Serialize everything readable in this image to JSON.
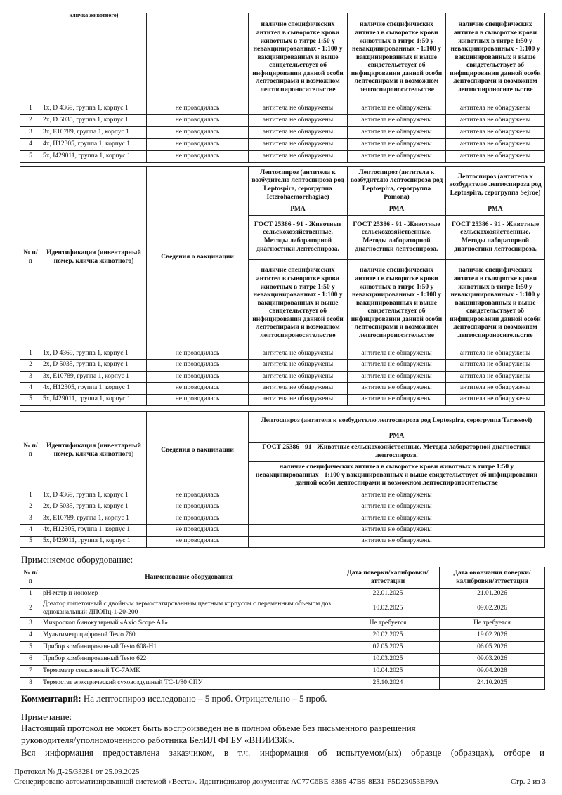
{
  "animals": [
    {
      "n": "1",
      "id": "1х, D 4369, группа 1, корпус 1",
      "vacc": "не проводилась"
    },
    {
      "n": "2",
      "id": "2х, D 5035, группа 1, корпус 1",
      "vacc": "не проводилась"
    },
    {
      "n": "3",
      "id": "3х, E10789, группа 1, корпус 1",
      "vacc": "не проводилась"
    },
    {
      "n": "4",
      "id": "4х, H12305, группа 1, корпус 1",
      "vacc": "не проводилась"
    },
    {
      "n": "5",
      "id": "5х, I429011, группа 1, корпус 1",
      "vacc": "не проводилась"
    }
  ],
  "headers": {
    "num": "№ п/п",
    "ident": "Идентификация (инвентарный номер, кличка животного)",
    "ident_cut": "кличка животного)",
    "vacc": "Сведения о вакцинации",
    "method": "РМА",
    "gost": "ГОСТ 25386 - 91 - Животные сельскохозяйственные. Методы лабораторной диагностики лептоспироза.",
    "criteria": "наличие специфических антител в сыворотке крови животных в титре 1:50 у невакцинированных - 1:100 у вакцинированных и выше свидетельствует об инфицировании данной особи лептоспирами и возможном лептоспироносительстве"
  },
  "result": "антитела не обнаружены",
  "table1": {
    "cols": 3
  },
  "table2": {
    "titles": [
      "Лептоспироз (антитела к возбудителю лептоспироза род Leptospira, серогруппа Icterohaemorrhagiae)",
      "Лептоспироз (антитела к возбудителю лептоспироза род Leptospira, серогруппа Pomona)",
      "Лептоспироз (антитела к возбудителю лептоспироза род Leptospira, серогруппа Sejroe)"
    ]
  },
  "table3": {
    "titles": [
      "Лептоспироз (антитела к возбудителю лептоспироза род Leptospira, серогруппа Tarassovi)"
    ]
  },
  "equipment": {
    "title": "Применяемое оборудование:",
    "headers": [
      "№ п/п",
      "Наименование оборудования",
      "Дата поверки/калибровки/аттестации",
      "Дата окончания поверки/калибровки/аттестации"
    ],
    "rows": [
      [
        "1",
        "pH-метр и иономер",
        "22.01.2025",
        "21.01.2026"
      ],
      [
        "2",
        "Дозатор пипеточный с двойным термостатированным цветным корпусом с переменным объемом доз одноканальный ДПОПц-1-20-200",
        "10.02.2025",
        "09.02.2026"
      ],
      [
        "3",
        "Микроскоп бинокулярный «Axio Scope.A1»",
        "Не требуется",
        "Не требуется"
      ],
      [
        "4",
        "Мультиметр цифровой Testo 760",
        "20.02.2025",
        "19.02.2026"
      ],
      [
        "5",
        "Прибор комбинированный Testo 608-H1",
        "07.05.2025",
        "06.05.2026"
      ],
      [
        "6",
        "Прибор комбинированный Testo 622",
        "10.03.2025",
        "09.03.2026"
      ],
      [
        "7",
        "Термометр стеклянный ТС-7АМК",
        "10.04.2025",
        "09.04.2028"
      ],
      [
        "8",
        "Термостат электрический суховоздушный ТС-1/80 СПУ",
        "25.10.2024",
        "24.10.2025"
      ]
    ]
  },
  "comment": {
    "label": "Комментарий:",
    "text": " На лептоспироз исследовано – 5 проб. Отрицательно – 5 проб."
  },
  "note": {
    "label": "Примечание:",
    "line1": "Настоящий протокол не может быть воспроизведен не в полном объеме без письменного разрешения",
    "line2": "руководителя/уполномоченного работника БелИЛ ФГБУ «ВНИИЗЖ».",
    "line3": "Вся информация предоставлена заказчиком, в т.ч. информация об испытуемом(ых) образце (образцах), отборе и"
  },
  "footer": {
    "protocol": "Протокол № Д-25/33281 от 25.09.2025",
    "generated": "Сгенерировано автоматизированной системой «Веста». Идентификатор документа: AC77C6BE-8385-47B9-8E31-F5D23053EF9A",
    "page": "Стр. 2 из 3"
  }
}
